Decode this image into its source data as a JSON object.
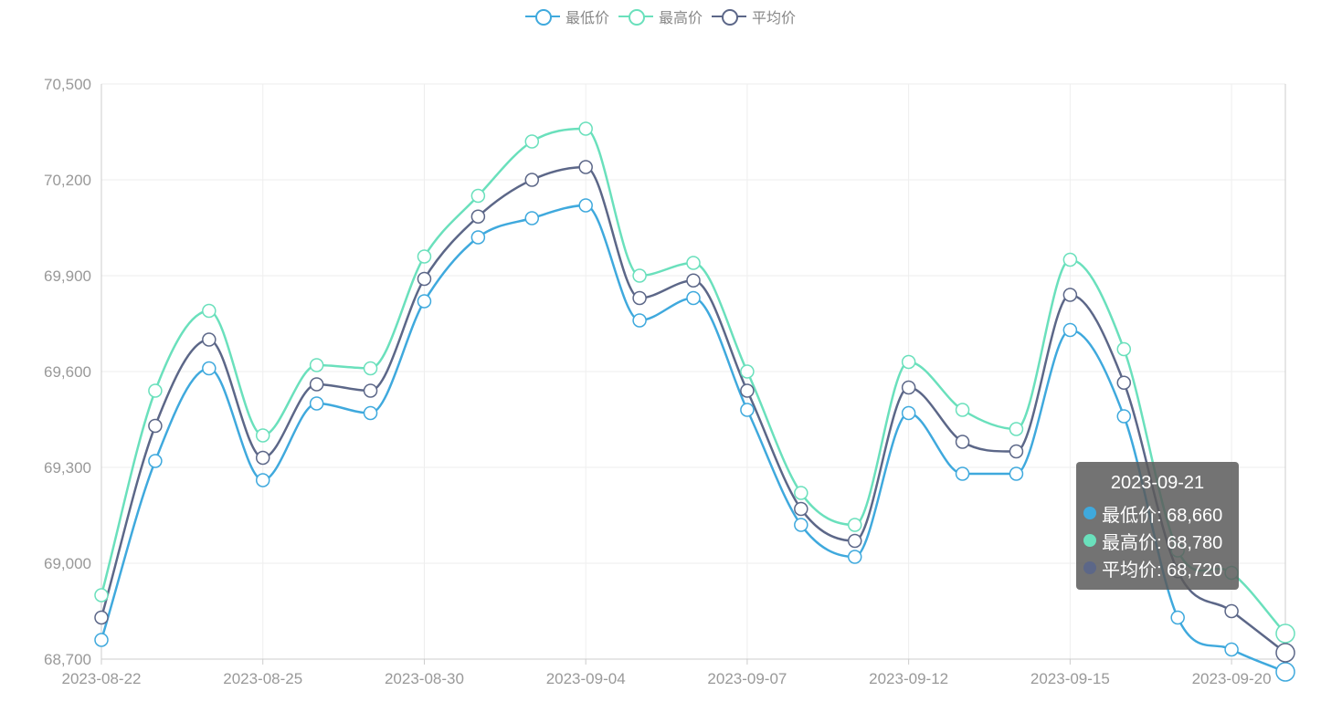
{
  "legend": {
    "items": [
      {
        "label": "最低价",
        "color": "#3fa9dd"
      },
      {
        "label": "最高价",
        "color": "#6ae0bc"
      },
      {
        "label": "平均价",
        "color": "#5c6788"
      }
    ]
  },
  "tooltip": {
    "title": "2023-09-21",
    "rows": [
      {
        "label": "最低价: 68,660",
        "color": "#3fa9dd"
      },
      {
        "label": "最高价: 68,780",
        "color": "#6ae0bc"
      },
      {
        "label": "平均价: 68,720",
        "color": "#5c6788"
      }
    ]
  },
  "chart_data": {
    "type": "line",
    "x": [
      "2023-08-22",
      "2023-08-23",
      "2023-08-24",
      "2023-08-25",
      "2023-08-26",
      "2023-08-28",
      "2023-08-30",
      "2023-08-31",
      "2023-09-01",
      "2023-09-04",
      "2023-09-05",
      "2023-09-06",
      "2023-09-07",
      "2023-09-08",
      "2023-09-11",
      "2023-09-12",
      "2023-09-13",
      "2023-09-14",
      "2023-09-15",
      "2023-09-18",
      "2023-09-19",
      "2023-09-20",
      "2023-09-21"
    ],
    "x_tick_labels": [
      "2023-08-22",
      "2023-08-25",
      "2023-08-30",
      "2023-09-04",
      "2023-09-07",
      "2023-09-12",
      "2023-09-15",
      "2023-09-20"
    ],
    "ylim": [
      68700,
      70500
    ],
    "yticks": [
      68700,
      69000,
      69300,
      69600,
      69900,
      70200,
      70500
    ],
    "ytick_labels": [
      "68,700",
      "69,000",
      "69,300",
      "69,600",
      "69,900",
      "70,200",
      "70,500"
    ],
    "grid": true,
    "legend_position": "top-center",
    "series": [
      {
        "name": "最低价",
        "color": "#3fa9dd",
        "values": [
          68760,
          69320,
          69610,
          69260,
          69500,
          69470,
          69820,
          70020,
          70080,
          70120,
          69760,
          69830,
          69480,
          69120,
          69020,
          69470,
          69280,
          69280,
          69730,
          69460,
          68830,
          68730,
          68660
        ]
      },
      {
        "name": "最高价",
        "color": "#6ae0bc",
        "values": [
          68900,
          69540,
          69790,
          69400,
          69620,
          69610,
          69960,
          70150,
          70320,
          70360,
          69900,
          69940,
          69600,
          69220,
          69120,
          69630,
          69480,
          69420,
          69950,
          69670,
          69040,
          68970,
          68780
        ]
      },
      {
        "name": "平均价",
        "color": "#5c6788",
        "values": [
          68830,
          69430,
          69700,
          69330,
          69560,
          69540,
          69890,
          70085,
          70200,
          70240,
          69830,
          69885,
          69540,
          69170,
          69070,
          69550,
          69380,
          69350,
          69840,
          69565,
          68975,
          68850,
          68720
        ]
      }
    ]
  }
}
